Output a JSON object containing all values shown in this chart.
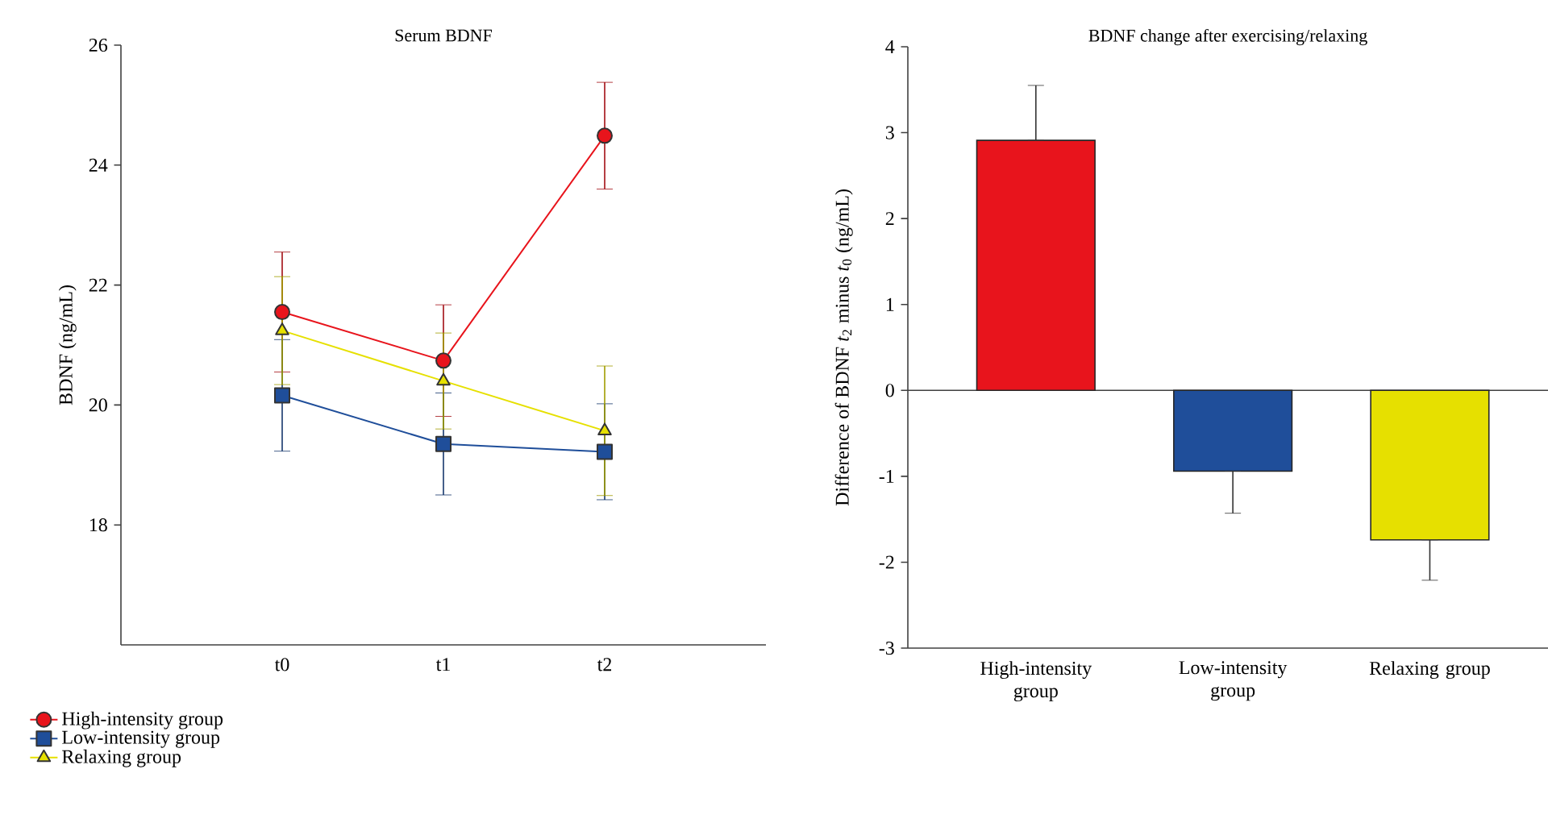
{
  "chart_data": [
    {
      "type": "line",
      "title": "Serum BDNF",
      "ylabel": "BDNF (ng/mL)",
      "categories": [
        "t0",
        "t1",
        "t2"
      ],
      "ylim": [
        16,
        26
      ],
      "yticks": [
        18,
        20,
        22,
        24,
        26
      ],
      "legend": "bottom left",
      "series": [
        {
          "name": "High-intensity group",
          "color": "#e8141c",
          "marker": "circle",
          "values": [
            21.55,
            20.74,
            24.49
          ],
          "errors": [
            1.0,
            0.93,
            0.89
          ]
        },
        {
          "name": "Low-intensity group",
          "color": "#1f4e9a",
          "marker": "square",
          "values": [
            20.16,
            19.35,
            19.22
          ],
          "errors": [
            0.93,
            0.85,
            0.8
          ]
        },
        {
          "name": "Relaxing group",
          "color": "#e6e000",
          "marker": "triangle",
          "values": [
            21.24,
            20.4,
            19.57
          ],
          "errors": [
            0.9,
            0.8,
            1.08
          ]
        }
      ]
    },
    {
      "type": "bar",
      "title": "BDNF change after exercising/relaxing",
      "ylabel": "Difference of BDNF *t*$_{2}$ minus *t*$_{0}$ (ng/mL)",
      "categories": [
        "High-intensity group",
        "Low-intensity group",
        "Relaxing group"
      ],
      "values": [
        2.91,
        -0.94,
        -1.74
      ],
      "colors": [
        "#e8141c",
        "#1f4e9a",
        "#e6e000"
      ],
      "errors": [
        [
          2.91,
          3.55
        ],
        [
          -1.43,
          -0.94
        ],
        [
          -2.21,
          -1.74
        ]
      ],
      "ylim": [
        -3,
        4
      ],
      "yticks": [
        -3,
        -2,
        -1,
        0,
        1,
        2,
        3,
        4
      ],
      "ref_lines": [
        {
          "axis": "y",
          "value": 0
        }
      ]
    }
  ]
}
